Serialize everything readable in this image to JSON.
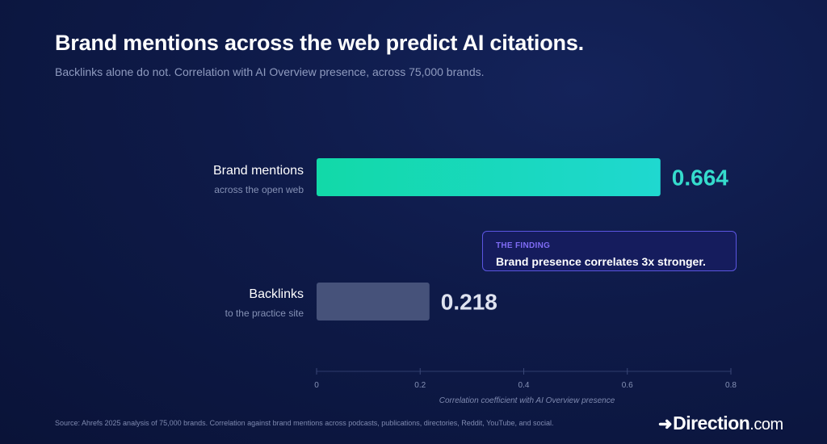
{
  "header": {
    "title": "Brand mentions across the web predict AI citations.",
    "subtitle": "Backlinks alone do not. Correlation with AI Overview presence, across 75,000 brands."
  },
  "chart_data": {
    "type": "bar",
    "orientation": "horizontal",
    "categories": [
      "Brand mentions",
      "Backlinks"
    ],
    "category_sublabels": [
      "across the open web",
      "to the practice site"
    ],
    "values": [
      0.664,
      0.218
    ],
    "value_labels": [
      "0.664",
      "0.218"
    ],
    "xlabel": "Correlation coefficient with AI Overview presence",
    "xlim": [
      0,
      0.8
    ],
    "xticks": [
      0,
      0.2,
      0.4,
      0.6,
      0.8
    ],
    "xtick_labels": [
      "0",
      "0.2",
      "0.4",
      "0.6",
      "0.8"
    ],
    "grid": false,
    "colors": {
      "highlight_start": "#12d9a8",
      "highlight_end": "#1fd8d0",
      "muted": "#46527a",
      "highlight_value": "#35dccd",
      "muted_value": "#dfe3f0"
    }
  },
  "finding": {
    "label": "THE FINDING",
    "text": "Brand presence correlates 3x stronger."
  },
  "footer": {
    "source": "Source: Ahrefs 2025 analysis of 75,000 brands. Correlation against brand mentions across podcasts, publications, directories, Reddit, YouTube, and social.",
    "logo_arrow": "➜",
    "logo_brand": "Direction",
    "logo_suffix": ".com"
  }
}
